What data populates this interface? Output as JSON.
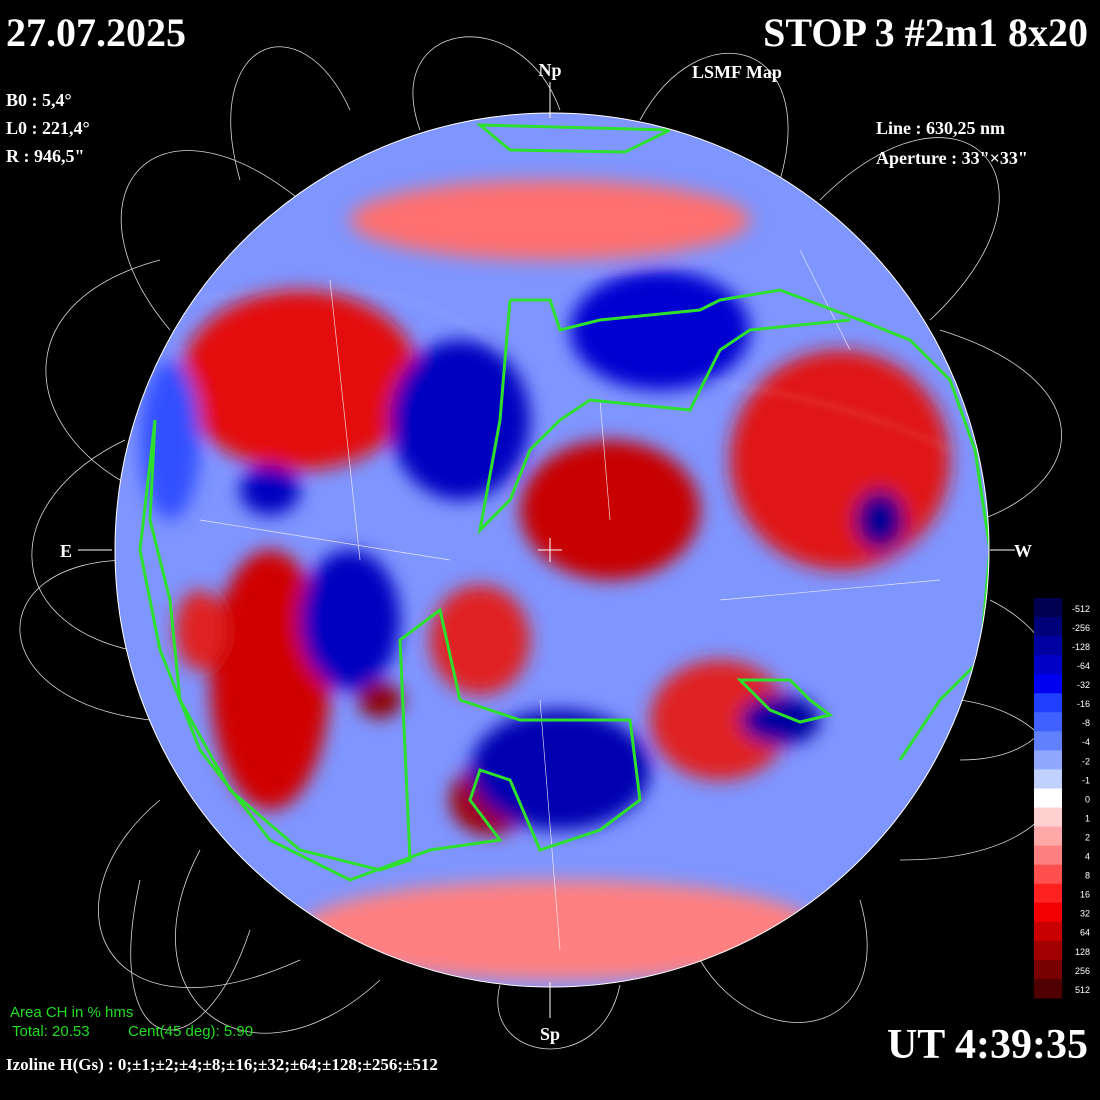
{
  "header": {
    "date": "27.07.2025",
    "title": "STOP 3 #2m1 8x20",
    "subtitle": "LSMF  Map"
  },
  "parameters": {
    "b0": "B0 : 5,4°",
    "l0": "L0 : 221,4°",
    "r": "R  : 946,5\"",
    "line": "Line :  630,25 nm",
    "aperture": "Aperture : 33\"×33\""
  },
  "compass": {
    "north": "Np",
    "south": "Sp",
    "east": "E",
    "west": "W"
  },
  "coronal_holes": {
    "title": "Area CH in % hms",
    "total": "Total: 20.53",
    "central": "Cent(45 deg): 5.90"
  },
  "time": "UT 4:39:35",
  "isolines": "Izoline H(Gs) : 0;±1;±2;±4;±8;±16;±32;±64;±128;±256;±512",
  "colorbar": {
    "ticks": [
      -512,
      -256,
      -128,
      -64,
      -32,
      -16,
      -8,
      -4,
      -2,
      -1,
      0,
      1,
      2,
      4,
      8,
      16,
      32,
      64,
      128,
      256,
      512
    ],
    "colors": [
      "#000050",
      "#00007a",
      "#0000a0",
      "#0000c8",
      "#0000f0",
      "#2040ff",
      "#4060ff",
      "#6080ff",
      "#90a8ff",
      "#c0d0ff",
      "#ffffff",
      "#ffd0d0",
      "#ffa8a8",
      "#ff8080",
      "#ff5050",
      "#ff2020",
      "#f00000",
      "#c80000",
      "#a00000",
      "#780000",
      "#500000"
    ]
  }
}
